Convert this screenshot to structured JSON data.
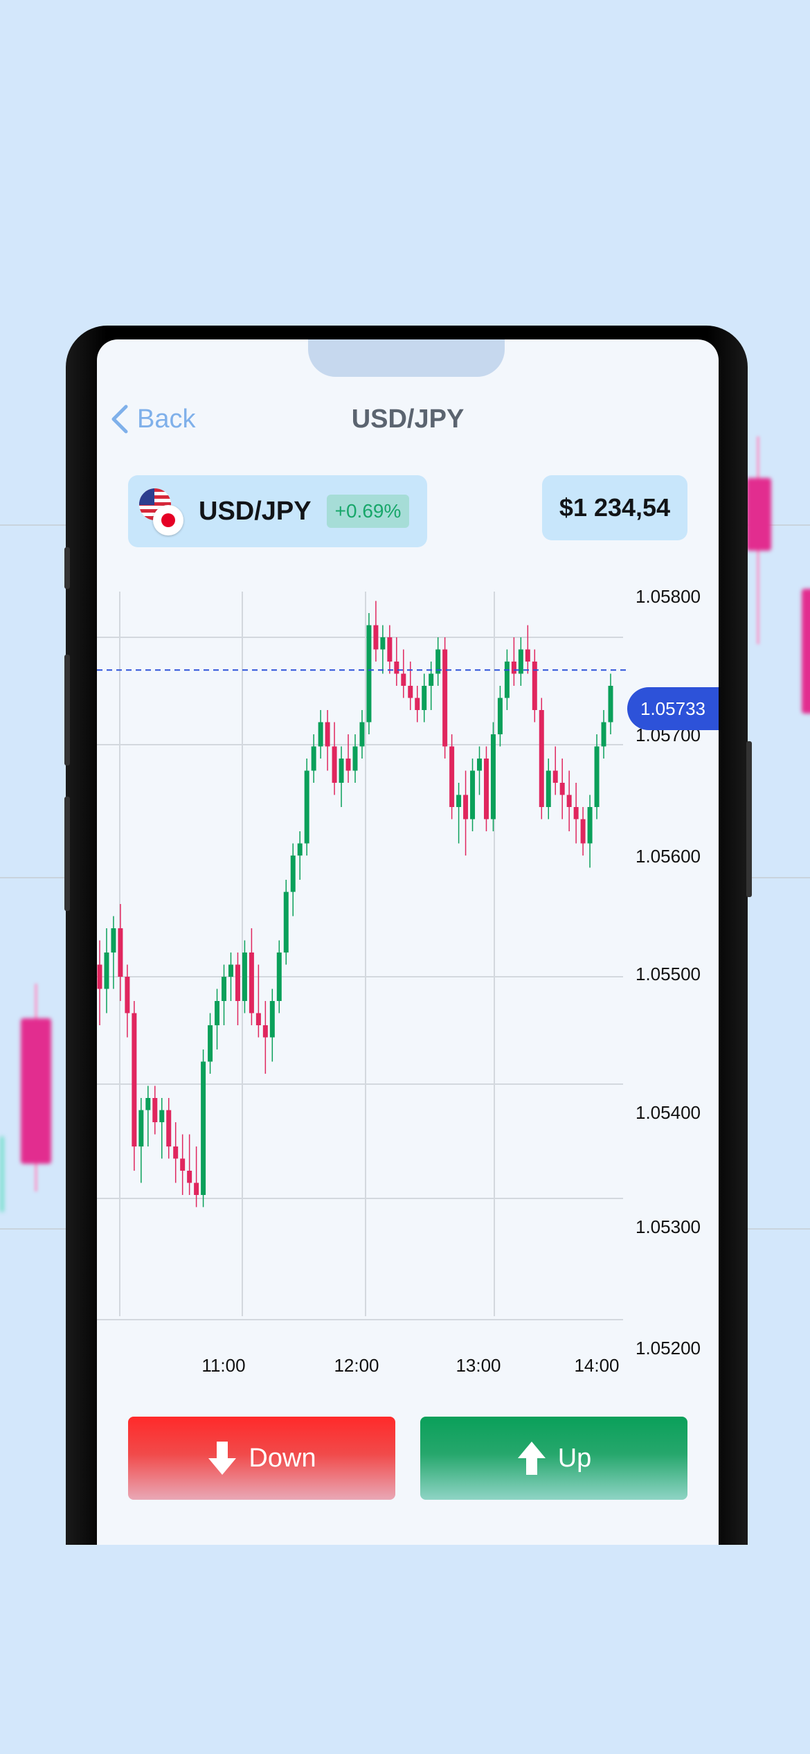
{
  "nav": {
    "back_label": "Back",
    "title": "USD/JPY"
  },
  "pair": {
    "name": "USD/JPY",
    "change": "+0.69%",
    "flags": [
      "us-flag-icon",
      "jp-flag-icon"
    ]
  },
  "balance": "$1 234,54",
  "colors": {
    "up": "#0aa05a",
    "down": "#e0265e",
    "accent": "#2d52d9"
  },
  "chart_data": {
    "type": "candlestick",
    "y_ticks": [
      "1.05800",
      "1.05700",
      "1.05600",
      "1.05500",
      "1.05400",
      "1.05300",
      "1.05200"
    ],
    "x_ticks": [
      "11:00",
      "12:00",
      "13:00",
      "14:00"
    ],
    "ylim": [
      1.052,
      1.058
    ],
    "current_price": "1.05733",
    "current_price_value": 1.05733,
    "candles": [
      [
        1.0549,
        1.0551,
        1.0544,
        1.0547
      ],
      [
        1.0547,
        1.0552,
        1.0545,
        1.055
      ],
      [
        1.055,
        1.0553,
        1.0547,
        1.0552
      ],
      [
        1.0552,
        1.0554,
        1.0546,
        1.0548
      ],
      [
        1.0548,
        1.0549,
        1.0543,
        1.0545
      ],
      [
        1.0545,
        1.0546,
        1.0532,
        1.0534
      ],
      [
        1.0534,
        1.0538,
        1.0531,
        1.0537
      ],
      [
        1.0537,
        1.0539,
        1.0534,
        1.0538
      ],
      [
        1.0538,
        1.0539,
        1.0535,
        1.0536
      ],
      [
        1.0536,
        1.0538,
        1.0533,
        1.0537
      ],
      [
        1.0537,
        1.0538,
        1.0533,
        1.0534
      ],
      [
        1.0534,
        1.0536,
        1.0531,
        1.0533
      ],
      [
        1.0533,
        1.0535,
        1.053,
        1.0532
      ],
      [
        1.0532,
        1.0535,
        1.053,
        1.0531
      ],
      [
        1.0531,
        1.0534,
        1.0529,
        1.053
      ],
      [
        1.053,
        1.0542,
        1.0529,
        1.0541
      ],
      [
        1.0541,
        1.0545,
        1.054,
        1.0544
      ],
      [
        1.0544,
        1.0547,
        1.0542,
        1.0546
      ],
      [
        1.0546,
        1.0549,
        1.0544,
        1.0548
      ],
      [
        1.0548,
        1.055,
        1.0546,
        1.0549
      ],
      [
        1.0549,
        1.055,
        1.0544,
        1.0546
      ],
      [
        1.0546,
        1.0551,
        1.0545,
        1.055
      ],
      [
        1.055,
        1.0552,
        1.0544,
        1.0545
      ],
      [
        1.0545,
        1.0549,
        1.0543,
        1.0544
      ],
      [
        1.0544,
        1.0546,
        1.054,
        1.0543
      ],
      [
        1.0543,
        1.0547,
        1.0541,
        1.0546
      ],
      [
        1.0546,
        1.0551,
        1.0545,
        1.055
      ],
      [
        1.055,
        1.0556,
        1.0549,
        1.0555
      ],
      [
        1.0555,
        1.0559,
        1.0553,
        1.0558
      ],
      [
        1.0558,
        1.056,
        1.0556,
        1.0559
      ],
      [
        1.0559,
        1.0566,
        1.0558,
        1.0565
      ],
      [
        1.0565,
        1.0568,
        1.0564,
        1.0567
      ],
      [
        1.0567,
        1.057,
        1.0566,
        1.0569
      ],
      [
        1.0569,
        1.057,
        1.0565,
        1.0567
      ],
      [
        1.0567,
        1.0569,
        1.0563,
        1.0564
      ],
      [
        1.0564,
        1.0567,
        1.0562,
        1.0566
      ],
      [
        1.0566,
        1.0568,
        1.0564,
        1.0565
      ],
      [
        1.0565,
        1.0568,
        1.0564,
        1.0567
      ],
      [
        1.0567,
        1.057,
        1.0566,
        1.0569
      ],
      [
        1.0569,
        1.0578,
        1.0568,
        1.0577
      ],
      [
        1.0577,
        1.0579,
        1.0574,
        1.0575
      ],
      [
        1.0575,
        1.0577,
        1.0573,
        1.0576
      ],
      [
        1.0576,
        1.0577,
        1.0573,
        1.0574
      ],
      [
        1.0574,
        1.0576,
        1.0572,
        1.0573
      ],
      [
        1.0573,
        1.0575,
        1.0571,
        1.0572
      ],
      [
        1.0572,
        1.0574,
        1.057,
        1.0571
      ],
      [
        1.0571,
        1.0572,
        1.0569,
        1.057
      ],
      [
        1.057,
        1.0573,
        1.0569,
        1.0572
      ],
      [
        1.0572,
        1.0574,
        1.057,
        1.0573
      ],
      [
        1.0573,
        1.0576,
        1.0572,
        1.0575
      ],
      [
        1.0575,
        1.0576,
        1.0566,
        1.0567
      ],
      [
        1.0567,
        1.0568,
        1.0561,
        1.0562
      ],
      [
        1.0562,
        1.0564,
        1.0559,
        1.0563
      ],
      [
        1.0563,
        1.0565,
        1.0558,
        1.0561
      ],
      [
        1.0561,
        1.0566,
        1.056,
        1.0565
      ],
      [
        1.0565,
        1.0567,
        1.0563,
        1.0566
      ],
      [
        1.0566,
        1.0567,
        1.056,
        1.0561
      ],
      [
        1.0561,
        1.0569,
        1.056,
        1.0568
      ],
      [
        1.0568,
        1.0572,
        1.0567,
        1.0571
      ],
      [
        1.0571,
        1.0575,
        1.057,
        1.0574
      ],
      [
        1.0574,
        1.0576,
        1.0572,
        1.0573
      ],
      [
        1.0573,
        1.0576,
        1.0572,
        1.0575
      ],
      [
        1.0575,
        1.0577,
        1.0573,
        1.0574
      ],
      [
        1.0574,
        1.0575,
        1.0569,
        1.057
      ],
      [
        1.057,
        1.0571,
        1.0561,
        1.0562
      ],
      [
        1.0562,
        1.0566,
        1.0561,
        1.0565
      ],
      [
        1.0565,
        1.0567,
        1.0563,
        1.0564
      ],
      [
        1.0564,
        1.0566,
        1.0561,
        1.0563
      ],
      [
        1.0563,
        1.0565,
        1.056,
        1.0562
      ],
      [
        1.0562,
        1.0564,
        1.0559,
        1.0561
      ],
      [
        1.0561,
        1.0562,
        1.0558,
        1.0559
      ],
      [
        1.0559,
        1.0563,
        1.0557,
        1.0562
      ],
      [
        1.0562,
        1.0568,
        1.0561,
        1.0567
      ],
      [
        1.0567,
        1.057,
        1.0566,
        1.0569
      ],
      [
        1.0569,
        1.0573,
        1.0568,
        1.0572
      ]
    ]
  }
}
